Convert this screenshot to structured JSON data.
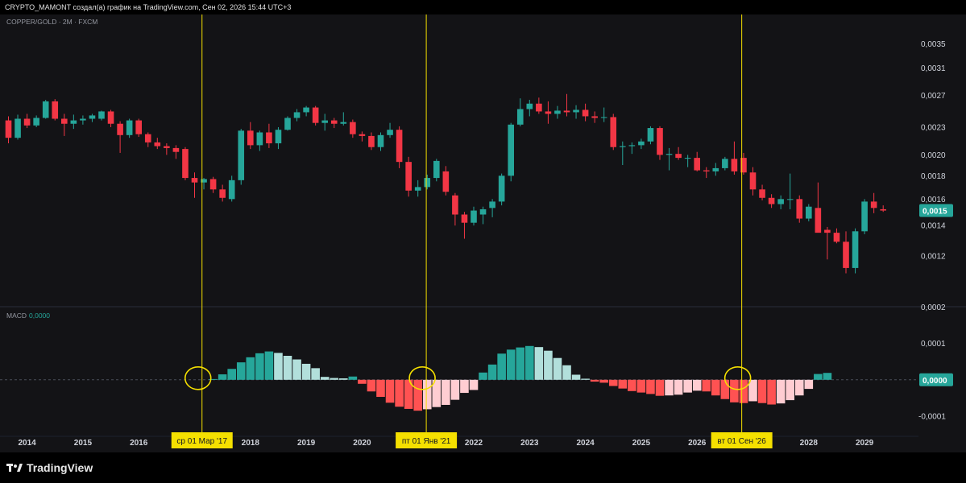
{
  "header": {
    "attribution": "CRYPTO_MAMONT создал(а) график на TradingView.com, Сен 02, 2026 15:44 UTC+3"
  },
  "footer": {
    "logo_text": "TradingView"
  },
  "colors": {
    "up": "#26a69a",
    "down": "#f23645",
    "hist_up_strong": "#26a69a",
    "hist_up_weak": "#b2dfdb",
    "hist_down_strong": "#ff5252",
    "hist_down_weak": "#ffcdd2",
    "marker_line": "#f5e000",
    "marker_label_bg": "#f5e000",
    "price_badge": "#26a69a",
    "background": "#131316"
  },
  "chart_data": [
    {
      "type": "candlestick",
      "title": "COPPER/GOLD · 2M · FXCM",
      "y_scale": "log",
      "ylim": [
        0.001,
        0.0039
      ],
      "y_ticks": [
        "0,0035",
        "0,0031",
        "0,0027",
        "0,0023",
        "0,0020",
        "0,0018",
        "0,0016",
        "0,0014",
        "0,0012"
      ],
      "last_price": "0,0015",
      "last_value": 0.00151,
      "interval_months": 2,
      "start": "2013-09",
      "candles": [
        {
          "o": 0.00238,
          "h": 0.00243,
          "l": 0.00212,
          "c": 0.00218
        },
        {
          "o": 0.00218,
          "h": 0.00245,
          "l": 0.00216,
          "c": 0.0024
        },
        {
          "o": 0.0024,
          "h": 0.00246,
          "l": 0.00229,
          "c": 0.00232
        },
        {
          "o": 0.00232,
          "h": 0.00244,
          "l": 0.0023,
          "c": 0.00241
        },
        {
          "o": 0.00241,
          "h": 0.00264,
          "l": 0.0024,
          "c": 0.00262
        },
        {
          "o": 0.00262,
          "h": 0.00265,
          "l": 0.00238,
          "c": 0.0024
        },
        {
          "o": 0.0024,
          "h": 0.00246,
          "l": 0.0022,
          "c": 0.00234
        },
        {
          "o": 0.00234,
          "h": 0.00245,
          "l": 0.00228,
          "c": 0.00238
        },
        {
          "o": 0.00238,
          "h": 0.00244,
          "l": 0.00233,
          "c": 0.0024
        },
        {
          "o": 0.0024,
          "h": 0.00246,
          "l": 0.00236,
          "c": 0.00244
        },
        {
          "o": 0.0024,
          "h": 0.0025,
          "l": 0.00238,
          "c": 0.00249
        },
        {
          "o": 0.00249,
          "h": 0.00251,
          "l": 0.0023,
          "c": 0.00234
        },
        {
          "o": 0.00234,
          "h": 0.00237,
          "l": 0.00202,
          "c": 0.00221
        },
        {
          "o": 0.00221,
          "h": 0.0024,
          "l": 0.00218,
          "c": 0.00238
        },
        {
          "o": 0.00238,
          "h": 0.0024,
          "l": 0.00219,
          "c": 0.00222
        },
        {
          "o": 0.00222,
          "h": 0.00224,
          "l": 0.00208,
          "c": 0.00213
        },
        {
          "o": 0.00213,
          "h": 0.00218,
          "l": 0.00206,
          "c": 0.00209
        },
        {
          "o": 0.00209,
          "h": 0.00212,
          "l": 0.002,
          "c": 0.00207
        },
        {
          "o": 0.00207,
          "h": 0.0021,
          "l": 0.00196,
          "c": 0.00203
        },
        {
          "o": 0.00206,
          "h": 0.00208,
          "l": 0.00176,
          "c": 0.00178
        },
        {
          "o": 0.00178,
          "h": 0.00183,
          "l": 0.00161,
          "c": 0.00174
        },
        {
          "o": 0.00174,
          "h": 0.00178,
          "l": 0.00168,
          "c": 0.00177
        },
        {
          "o": 0.00177,
          "h": 0.00179,
          "l": 0.00165,
          "c": 0.00168
        },
        {
          "o": 0.00168,
          "h": 0.00172,
          "l": 0.00158,
          "c": 0.00161
        },
        {
          "o": 0.0016,
          "h": 0.0018,
          "l": 0.00158,
          "c": 0.00176
        },
        {
          "o": 0.00176,
          "h": 0.00228,
          "l": 0.00172,
          "c": 0.00226
        },
        {
          "o": 0.00226,
          "h": 0.00236,
          "l": 0.00206,
          "c": 0.0021
        },
        {
          "o": 0.0021,
          "h": 0.00226,
          "l": 0.00204,
          "c": 0.00224
        },
        {
          "o": 0.00224,
          "h": 0.00234,
          "l": 0.00207,
          "c": 0.00212
        },
        {
          "o": 0.00212,
          "h": 0.0023,
          "l": 0.00206,
          "c": 0.00227
        },
        {
          "o": 0.00227,
          "h": 0.00243,
          "l": 0.00226,
          "c": 0.00241
        },
        {
          "o": 0.00241,
          "h": 0.00252,
          "l": 0.00237,
          "c": 0.00248
        },
        {
          "o": 0.00248,
          "h": 0.00256,
          "l": 0.00243,
          "c": 0.00254
        },
        {
          "o": 0.00254,
          "h": 0.00256,
          "l": 0.00232,
          "c": 0.00235
        },
        {
          "o": 0.00235,
          "h": 0.00246,
          "l": 0.00226,
          "c": 0.00238
        },
        {
          "o": 0.00238,
          "h": 0.00241,
          "l": 0.00229,
          "c": 0.00234
        },
        {
          "o": 0.00234,
          "h": 0.00248,
          "l": 0.00232,
          "c": 0.00236
        },
        {
          "o": 0.00236,
          "h": 0.00239,
          "l": 0.00218,
          "c": 0.00222
        },
        {
          "o": 0.00222,
          "h": 0.00225,
          "l": 0.00214,
          "c": 0.0022
        },
        {
          "o": 0.0022,
          "h": 0.00224,
          "l": 0.00205,
          "c": 0.00208
        },
        {
          "o": 0.00208,
          "h": 0.00224,
          "l": 0.00204,
          "c": 0.00221
        },
        {
          "o": 0.00221,
          "h": 0.00235,
          "l": 0.00218,
          "c": 0.00227
        },
        {
          "o": 0.00227,
          "h": 0.00231,
          "l": 0.00187,
          "c": 0.00193
        },
        {
          "o": 0.00193,
          "h": 0.00198,
          "l": 0.00162,
          "c": 0.00167
        },
        {
          "o": 0.00167,
          "h": 0.00176,
          "l": 0.00162,
          "c": 0.0017
        },
        {
          "o": 0.0017,
          "h": 0.00181,
          "l": 0.00168,
          "c": 0.00178
        },
        {
          "o": 0.00178,
          "h": 0.00196,
          "l": 0.00175,
          "c": 0.00194
        },
        {
          "o": 0.00184,
          "h": 0.00189,
          "l": 0.00163,
          "c": 0.00166
        },
        {
          "o": 0.00163,
          "h": 0.00165,
          "l": 0.0014,
          "c": 0.00148
        },
        {
          "o": 0.00148,
          "h": 0.0015,
          "l": 0.00131,
          "c": 0.00142
        },
        {
          "o": 0.00142,
          "h": 0.00154,
          "l": 0.0014,
          "c": 0.00151
        },
        {
          "o": 0.00148,
          "h": 0.00154,
          "l": 0.00141,
          "c": 0.00152
        },
        {
          "o": 0.00153,
          "h": 0.0016,
          "l": 0.00146,
          "c": 0.00158
        },
        {
          "o": 0.00158,
          "h": 0.00182,
          "l": 0.00155,
          "c": 0.0018
        },
        {
          "o": 0.0018,
          "h": 0.00235,
          "l": 0.00175,
          "c": 0.00233
        },
        {
          "o": 0.00233,
          "h": 0.00266,
          "l": 0.00231,
          "c": 0.00252
        },
        {
          "o": 0.00252,
          "h": 0.00264,
          "l": 0.00243,
          "c": 0.00259
        },
        {
          "o": 0.00259,
          "h": 0.00267,
          "l": 0.00246,
          "c": 0.00249
        },
        {
          "o": 0.00249,
          "h": 0.00262,
          "l": 0.00234,
          "c": 0.00246
        },
        {
          "o": 0.00246,
          "h": 0.00256,
          "l": 0.0024,
          "c": 0.0025
        },
        {
          "o": 0.0025,
          "h": 0.00272,
          "l": 0.00243,
          "c": 0.00248
        },
        {
          "o": 0.00248,
          "h": 0.00257,
          "l": 0.0024,
          "c": 0.00251
        },
        {
          "o": 0.00251,
          "h": 0.00259,
          "l": 0.00237,
          "c": 0.00243
        },
        {
          "o": 0.00243,
          "h": 0.00249,
          "l": 0.00235,
          "c": 0.00241
        },
        {
          "o": 0.00241,
          "h": 0.00254,
          "l": 0.00236,
          "c": 0.00242
        },
        {
          "o": 0.00242,
          "h": 0.00246,
          "l": 0.00205,
          "c": 0.00208
        },
        {
          "o": 0.00208,
          "h": 0.00214,
          "l": 0.0019,
          "c": 0.00209
        },
        {
          "o": 0.00209,
          "h": 0.00213,
          "l": 0.00201,
          "c": 0.0021
        },
        {
          "o": 0.0021,
          "h": 0.00217,
          "l": 0.00206,
          "c": 0.00214
        },
        {
          "o": 0.00214,
          "h": 0.00231,
          "l": 0.00211,
          "c": 0.00229
        },
        {
          "o": 0.00229,
          "h": 0.00231,
          "l": 0.00195,
          "c": 0.002
        },
        {
          "o": 0.002,
          "h": 0.00207,
          "l": 0.00185,
          "c": 0.00201
        },
        {
          "o": 0.00201,
          "h": 0.00208,
          "l": 0.00195,
          "c": 0.00197
        },
        {
          "o": 0.00197,
          "h": 0.002,
          "l": 0.00188,
          "c": 0.00197
        },
        {
          "o": 0.00197,
          "h": 0.00203,
          "l": 0.00184,
          "c": 0.00185
        },
        {
          "o": 0.00185,
          "h": 0.00188,
          "l": 0.00178,
          "c": 0.00184
        },
        {
          "o": 0.00184,
          "h": 0.00192,
          "l": 0.0018,
          "c": 0.00187
        },
        {
          "o": 0.00187,
          "h": 0.00198,
          "l": 0.00185,
          "c": 0.00196
        },
        {
          "o": 0.00196,
          "h": 0.00214,
          "l": 0.00181,
          "c": 0.00184
        },
        {
          "o": 0.00197,
          "h": 0.00202,
          "l": 0.00181,
          "c": 0.00183
        },
        {
          "o": 0.00183,
          "h": 0.00188,
          "l": 0.00163,
          "c": 0.00168
        },
        {
          "o": 0.00168,
          "h": 0.00172,
          "l": 0.00159,
          "c": 0.00161
        },
        {
          "o": 0.00161,
          "h": 0.00164,
          "l": 0.00153,
          "c": 0.00156
        },
        {
          "o": 0.00156,
          "h": 0.00163,
          "l": 0.00152,
          "c": 0.0016
        },
        {
          "o": 0.0016,
          "h": 0.00182,
          "l": 0.00152,
          "c": 0.0016
        },
        {
          "o": 0.0016,
          "h": 0.00163,
          "l": 0.00142,
          "c": 0.00145
        },
        {
          "o": 0.00145,
          "h": 0.00156,
          "l": 0.00143,
          "c": 0.00154
        },
        {
          "o": 0.00153,
          "h": 0.00174,
          "l": 0.00136,
          "c": 0.00135
        },
        {
          "o": 0.00137,
          "h": 0.00139,
          "l": 0.00118,
          "c": 0.00135
        },
        {
          "o": 0.00135,
          "h": 0.00138,
          "l": 0.00128,
          "c": 0.00129
        },
        {
          "o": 0.00129,
          "h": 0.00136,
          "l": 0.0011,
          "c": 0.00113
        },
        {
          "o": 0.00113,
          "h": 0.00138,
          "l": 0.0011,
          "c": 0.00136
        },
        {
          "o": 0.00136,
          "h": 0.0016,
          "l": 0.00134,
          "c": 0.00158
        },
        {
          "o": 0.00158,
          "h": 0.00165,
          "l": 0.00149,
          "c": 0.00153
        },
        {
          "o": 0.00152,
          "h": 0.00155,
          "l": 0.0015,
          "c": 0.00151
        }
      ]
    },
    {
      "type": "histogram",
      "title": "MACD",
      "value_label": "0,0000",
      "last_value_label": "0,0000",
      "ylim": [
        -0.00012,
        0.00019
      ],
      "y_ticks": [
        {
          "label": "0,0002",
          "v": 0.0002
        },
        {
          "label": "0,0001",
          "v": 0.0001
        },
        {
          "label": "0,0000",
          "v": 0.0
        },
        {
          "label": "-0,0001",
          "v": -0.0001
        }
      ],
      "start_index": 22,
      "values": [
        2e-06,
        1.5e-05,
        3e-05,
        4.8e-05,
        6.2e-05,
        7.3e-05,
        7.8e-05,
        7.4e-05,
        6.6e-05,
        5.6e-05,
        4.4e-05,
        3.2e-05,
        8e-06,
        5e-06,
        4e-06,
        9e-06,
        -1.1e-05,
        -3.2e-05,
        -4.7e-05,
        -6.3e-05,
        -7.4e-05,
        -8e-05,
        -8.5e-05,
        -8.1e-05,
        -7.5e-05,
        -6.9e-05,
        -5.5e-05,
        -3.6e-05,
        -2.8e-05,
        2e-05,
        4.2e-05,
        7.2e-05,
        8.3e-05,
        8.9e-05,
        9.3e-05,
        9e-05,
        8e-05,
        6e-05,
        4e-05,
        1.4e-05,
        3e-06,
        -5e-06,
        -8e-06,
        -1.7e-05,
        -2.4e-05,
        -3.1e-05,
        -3.5e-05,
        -3.9e-05,
        -4.4e-05,
        -4.3e-05,
        -4.1e-05,
        -3.5e-05,
        -3e-05,
        -3.2e-05,
        -4.3e-05,
        -5.3e-05,
        -6.2e-05,
        -6.4e-05,
        -5.9e-05,
        -6.4e-05,
        -6.8e-05,
        -6.5e-05,
        -5.6e-05,
        -4.3e-05,
        -2.5e-05,
        1.6e-05,
        1.9e-05
      ]
    }
  ],
  "x_axis": {
    "years": [
      "2014",
      "2015",
      "2016",
      "2017",
      "2018",
      "2019",
      "2020",
      "2021",
      "2022",
      "2023",
      "2024",
      "2025",
      "2026",
      "2027",
      "2028",
      "2029"
    ],
    "year_indices": [
      2,
      8,
      14,
      20,
      26,
      32,
      38,
      44,
      50,
      56,
      62,
      68,
      74,
      80,
      86,
      92
    ]
  },
  "markers": [
    {
      "label": "ср 01 Мар '17",
      "index": 20.8
    },
    {
      "label": "пт 01 Янв '21",
      "index": 44.9
    },
    {
      "label": "вт 01 Сен '26",
      "index": 78.8
    }
  ]
}
